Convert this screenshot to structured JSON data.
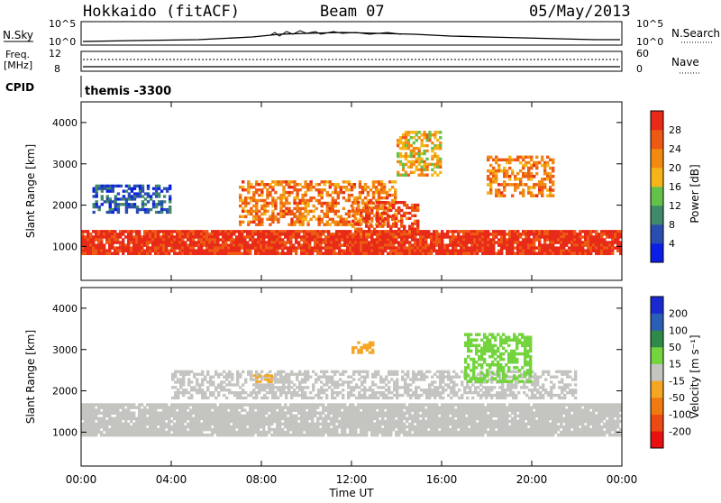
{
  "header": {
    "station": "Hokkaido (fitACF)",
    "beam": "Beam 07",
    "date": "05/May/2013"
  },
  "status_panels": {
    "nsky_label": "N.Sky",
    "nsky_top_tick": "10^5",
    "nsky_bottom_tick": "10^0",
    "nsearch_label": "N.Search",
    "nsearch_top_tick": "10^5",
    "nsearch_bottom_tick": "10^0",
    "freq_label_line1": "Freq.",
    "freq_label_line2": "[MHz]",
    "freq_top_tick": "12",
    "freq_bottom_tick": "8",
    "nave_label": "Nave",
    "nave_top_tick": "60",
    "nave_bottom_tick": "0",
    "cpid_label": "CPID",
    "cpid_value": "themis -3300"
  },
  "axes": {
    "ylabel": "Slant Range [km]",
    "xlabel": "Time UT",
    "yticks": [
      "1000",
      "2000",
      "3000",
      "4000"
    ],
    "xticks": [
      "00:00",
      "04:00",
      "08:00",
      "12:00",
      "16:00",
      "20:00",
      "00:00"
    ]
  },
  "colorbars": {
    "power": {
      "label": "Power [dB]",
      "ticks": [
        "4",
        "8",
        "12",
        "16",
        "20",
        "24",
        "28"
      ],
      "colors": [
        "#0a1ee6",
        "#2a4eb0",
        "#3f8a6a",
        "#62c24a",
        "#f5b417",
        "#f28a12",
        "#ee5a14",
        "#e82a18"
      ]
    },
    "velocity": {
      "label": "Velocity [m s⁻¹]",
      "ticks": [
        "200",
        "100",
        "50",
        "15",
        "-15",
        "-50",
        "-100",
        "-200"
      ],
      "colors": [
        "#1a2ad0",
        "#2a5fb5",
        "#2f8a4a",
        "#74d43e",
        "#c4c4c0",
        "#f5a623",
        "#ef7a12",
        "#ec4a12",
        "#e81010"
      ]
    }
  },
  "chart_data": [
    {
      "type": "heatmap",
      "title": "Power",
      "x_range_hours": [
        0,
        24
      ],
      "y_range_km": [
        180,
        4500
      ],
      "colorbar_label": "Power [dB]",
      "value_range": [
        0,
        30
      ],
      "regions": [
        {
          "t": [
            0,
            24
          ],
          "r": [
            800,
            1400
          ],
          "value": 28,
          "desc": "main band"
        },
        {
          "t": [
            7,
            14
          ],
          "r": [
            1500,
            2600
          ],
          "value": 22
        },
        {
          "t": [
            12,
            15
          ],
          "r": [
            1200,
            2100
          ],
          "value": 26
        },
        {
          "t": [
            18,
            21
          ],
          "r": [
            2200,
            3200
          ],
          "value": 22
        },
        {
          "t": [
            0.5,
            4
          ],
          "r": [
            1800,
            2500
          ],
          "value": 6
        },
        {
          "t": [
            14,
            16
          ],
          "r": [
            2700,
            3800
          ],
          "value": 18
        }
      ]
    },
    {
      "type": "heatmap",
      "title": "Velocity",
      "x_range_hours": [
        0,
        24
      ],
      "y_range_km": [
        180,
        4500
      ],
      "colorbar_label": "Velocity [m s-1]",
      "value_range": [
        -200,
        200
      ],
      "regions": [
        {
          "t": [
            0,
            24
          ],
          "r": [
            900,
            1700
          ],
          "value": 0,
          "desc": "ground scatter"
        },
        {
          "t": [
            4,
            22
          ],
          "r": [
            1800,
            2500
          ],
          "value": 0
        },
        {
          "t": [
            17,
            20
          ],
          "r": [
            2200,
            3400
          ],
          "value": 40
        },
        {
          "t": [
            12,
            13
          ],
          "r": [
            2900,
            3200
          ],
          "value": -40
        },
        {
          "t": [
            7.5,
            8.5
          ],
          "r": [
            2200,
            2400
          ],
          "value": -40
        }
      ]
    }
  ]
}
